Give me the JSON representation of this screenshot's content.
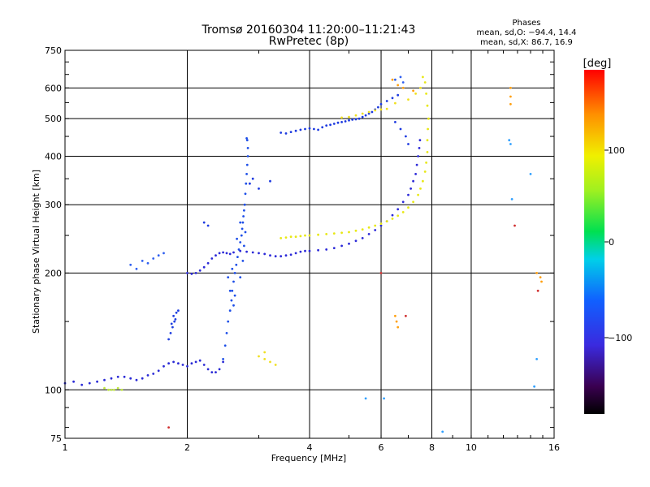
{
  "header": {
    "title_line1": "Tromsø 20160304 11:20:00–11:21:43",
    "title_line2": "RwPretec (8p)"
  },
  "phases_box": {
    "heading": "Phases",
    "line_o": "mean, sd,O:  −94.4, 14.4",
    "line_x": "mean, sd,X:  86.7, 16.9"
  },
  "colorbar": {
    "label": "[deg]",
    "tick_labels": [
      "100",
      "0",
      "−100"
    ],
    "range": [
      -180,
      180
    ]
  },
  "chart_data": {
    "type": "scatter",
    "title": "Tromsø 20160304 11:20:00–11:21:43",
    "subtitle": "RwPretec (8p)",
    "xlabel": "Frequency [MHz]",
    "ylabel": "Stationary phase Virtual Height [km]",
    "x_scale": "log",
    "y_scale": "log",
    "xlim": [
      1,
      16
    ],
    "ylim": [
      75,
      750
    ],
    "x_ticks": [
      1,
      2,
      4,
      6,
      8,
      10,
      16
    ],
    "x_tick_labels": [
      "1",
      "2",
      "4",
      "6",
      "8",
      "10",
      "16"
    ],
    "y_ticks": [
      75,
      100,
      200,
      300,
      400,
      500,
      600,
      750
    ],
    "y_tick_labels": [
      "75",
      "100",
      "200",
      "300",
      "400",
      "500",
      "600",
      "750"
    ],
    "x_grid": [
      2,
      4,
      6,
      8,
      10
    ],
    "y_grid": [
      100,
      200,
      300,
      400,
      500,
      600
    ],
    "grid": true,
    "color_variable": "phase [deg]",
    "series": [
      {
        "color": "#2a2ad6",
        "phase": -100,
        "points": [
          [
            1.0,
            104
          ],
          [
            1.05,
            105
          ],
          [
            1.1,
            103
          ],
          [
            1.15,
            104
          ],
          [
            1.2,
            105
          ],
          [
            1.25,
            106
          ],
          [
            1.3,
            107
          ],
          [
            1.35,
            108
          ],
          [
            1.4,
            108
          ],
          [
            1.45,
            107
          ],
          [
            1.5,
            106
          ],
          [
            1.55,
            107
          ],
          [
            1.6,
            109
          ],
          [
            1.65,
            110
          ],
          [
            1.7,
            112
          ],
          [
            1.75,
            115
          ],
          [
            1.8,
            117
          ],
          [
            1.85,
            118
          ],
          [
            1.9,
            117
          ],
          [
            1.95,
            116
          ],
          [
            2.0,
            115
          ],
          [
            2.05,
            117
          ],
          [
            2.1,
            118
          ],
          [
            2.15,
            119
          ],
          [
            2.2,
            116
          ],
          [
            2.25,
            113
          ],
          [
            2.3,
            111
          ],
          [
            2.35,
            111
          ],
          [
            2.4,
            113
          ],
          [
            2.45,
            118
          ]
        ]
      },
      {
        "color": "#1f3fe0",
        "phase": -110,
        "points": [
          [
            1.8,
            135
          ],
          [
            1.82,
            140
          ],
          [
            1.84,
            145
          ],
          [
            1.86,
            150
          ],
          [
            1.85,
            155
          ],
          [
            1.88,
            158
          ],
          [
            1.9,
            160
          ],
          [
            1.83,
            148
          ],
          [
            1.87,
            152
          ]
        ]
      },
      {
        "color": "#1e4fe8",
        "phase": -100,
        "points": [
          [
            2.45,
            120
          ],
          [
            2.48,
            130
          ],
          [
            2.5,
            140
          ],
          [
            2.52,
            150
          ],
          [
            2.55,
            160
          ],
          [
            2.57,
            170
          ],
          [
            2.58,
            180
          ],
          [
            2.6,
            190
          ],
          [
            2.62,
            200
          ],
          [
            2.64,
            210
          ],
          [
            2.66,
            220
          ],
          [
            2.68,
            230
          ],
          [
            2.7,
            240
          ],
          [
            2.72,
            250
          ],
          [
            2.73,
            260
          ],
          [
            2.74,
            270
          ],
          [
            2.75,
            280
          ],
          [
            2.76,
            290
          ],
          [
            2.77,
            300
          ],
          [
            2.78,
            320
          ],
          [
            2.79,
            340
          ],
          [
            2.8,
            360
          ],
          [
            2.81,
            380
          ],
          [
            2.82,
            400
          ],
          [
            2.82,
            420
          ],
          [
            2.81,
            440
          ],
          [
            2.8,
            445
          ],
          [
            2.55,
            180
          ],
          [
            2.6,
            165
          ],
          [
            2.62,
            175
          ],
          [
            2.7,
            195
          ],
          [
            2.74,
            215
          ],
          [
            2.76,
            235
          ],
          [
            2.78,
            255
          ],
          [
            2.7,
            270
          ],
          [
            2.65,
            245
          ],
          [
            2.58,
            205
          ],
          [
            2.52,
            195
          ]
        ]
      },
      {
        "color": "#2c2ad8",
        "phase": -95,
        "points": [
          [
            2.0,
            200
          ],
          [
            2.05,
            199
          ],
          [
            2.1,
            200
          ],
          [
            2.15,
            203
          ],
          [
            2.2,
            207
          ],
          [
            2.25,
            212
          ],
          [
            2.3,
            218
          ],
          [
            2.35,
            222
          ],
          [
            2.4,
            225
          ],
          [
            2.45,
            226
          ],
          [
            2.5,
            225
          ],
          [
            2.55,
            224
          ],
          [
            2.6,
            226
          ],
          [
            2.7,
            228
          ],
          [
            2.8,
            227
          ],
          [
            2.9,
            226
          ],
          [
            3.0,
            225
          ],
          [
            3.1,
            224
          ],
          [
            3.2,
            222
          ],
          [
            3.3,
            221
          ],
          [
            3.4,
            221
          ],
          [
            3.5,
            222
          ],
          [
            3.6,
            223
          ],
          [
            3.7,
            225
          ],
          [
            3.8,
            227
          ],
          [
            3.9,
            228
          ],
          [
            4.0,
            228
          ],
          [
            4.2,
            229
          ],
          [
            4.4,
            230
          ],
          [
            4.6,
            232
          ],
          [
            4.8,
            235
          ],
          [
            5.0,
            238
          ],
          [
            5.2,
            242
          ],
          [
            5.4,
            246
          ],
          [
            5.6,
            252
          ],
          [
            5.8,
            258
          ],
          [
            6.0,
            265
          ],
          [
            6.2,
            272
          ],
          [
            6.4,
            282
          ],
          [
            6.6,
            292
          ],
          [
            6.8,
            305
          ],
          [
            7.0,
            318
          ],
          [
            7.1,
            330
          ],
          [
            7.2,
            345
          ],
          [
            7.3,
            360
          ],
          [
            7.35,
            380
          ],
          [
            7.4,
            400
          ],
          [
            7.45,
            420
          ],
          [
            7.48,
            440
          ]
        ]
      },
      {
        "color": "#1d3ae0",
        "phase": -105,
        "points": [
          [
            2.2,
            270
          ],
          [
            2.25,
            265
          ],
          [
            2.85,
            340
          ],
          [
            2.9,
            350
          ],
          [
            3.0,
            330
          ],
          [
            3.2,
            345
          ],
          [
            3.4,
            460
          ],
          [
            3.5,
            458
          ],
          [
            3.6,
            462
          ],
          [
            3.7,
            465
          ],
          [
            3.8,
            468
          ],
          [
            3.9,
            470
          ],
          [
            4.0,
            472
          ],
          [
            4.1,
            470
          ],
          [
            4.2,
            468
          ],
          [
            4.3,
            475
          ],
          [
            4.4,
            480
          ],
          [
            4.5,
            482
          ],
          [
            4.6,
            485
          ],
          [
            4.7,
            488
          ],
          [
            4.8,
            490
          ],
          [
            4.9,
            492
          ],
          [
            5.0,
            495
          ],
          [
            5.1,
            497
          ],
          [
            5.2,
            498
          ],
          [
            5.3,
            500
          ],
          [
            5.4,
            505
          ],
          [
            5.5,
            510
          ],
          [
            5.6,
            515
          ],
          [
            5.7,
            520
          ],
          [
            5.8,
            528
          ],
          [
            5.9,
            535
          ],
          [
            6.0,
            545
          ],
          [
            6.2,
            555
          ],
          [
            6.4,
            565
          ],
          [
            6.6,
            575
          ],
          [
            6.5,
            490
          ],
          [
            6.7,
            470
          ],
          [
            6.9,
            450
          ],
          [
            7.0,
            430
          ]
        ]
      },
      {
        "color": "#3060f0",
        "phase": -90,
        "points": [
          [
            1.55,
            215
          ],
          [
            1.6,
            212
          ],
          [
            1.65,
            218
          ],
          [
            1.7,
            222
          ],
          [
            1.75,
            225
          ],
          [
            1.5,
            205
          ],
          [
            1.45,
            210
          ],
          [
            6.5,
            630
          ],
          [
            6.7,
            640
          ],
          [
            6.8,
            620
          ]
        ]
      },
      {
        "color": "#e8e816",
        "phase": 100,
        "points": [
          [
            3.4,
            246
          ],
          [
            3.5,
            247
          ],
          [
            3.6,
            248
          ],
          [
            3.7,
            248
          ],
          [
            3.8,
            249
          ],
          [
            3.9,
            250
          ],
          [
            4.0,
            250
          ],
          [
            4.2,
            251
          ],
          [
            4.4,
            252
          ],
          [
            4.6,
            253
          ],
          [
            4.8,
            254
          ],
          [
            5.0,
            255
          ],
          [
            5.2,
            257
          ],
          [
            5.4,
            259
          ],
          [
            5.6,
            262
          ],
          [
            5.8,
            265
          ],
          [
            6.0,
            268
          ],
          [
            6.2,
            272
          ],
          [
            6.4,
            276
          ],
          [
            6.6,
            281
          ],
          [
            6.8,
            287
          ],
          [
            7.0,
            295
          ],
          [
            7.2,
            305
          ],
          [
            7.4,
            318
          ],
          [
            7.5,
            330
          ],
          [
            7.6,
            345
          ],
          [
            7.7,
            365
          ],
          [
            7.75,
            385
          ],
          [
            7.8,
            410
          ],
          [
            7.8,
            440
          ],
          [
            7.82,
            470
          ],
          [
            7.85,
            500
          ],
          [
            7.8,
            540
          ],
          [
            7.75,
            580
          ],
          [
            7.7,
            620
          ],
          [
            7.6,
            640
          ]
        ]
      },
      {
        "color": "#f0e020",
        "phase": 90,
        "points": [
          [
            4.8,
            503
          ],
          [
            5.0,
            505
          ],
          [
            5.2,
            510
          ],
          [
            5.4,
            515
          ],
          [
            5.6,
            520
          ],
          [
            5.8,
            525
          ],
          [
            6.0,
            528
          ],
          [
            6.2,
            530
          ],
          [
            6.5,
            548
          ],
          [
            7.0,
            560
          ],
          [
            7.3,
            580
          ],
          [
            7.5,
            600
          ],
          [
            3.0,
            122
          ],
          [
            3.1,
            120
          ],
          [
            3.2,
            118
          ],
          [
            3.3,
            116
          ],
          [
            3.1,
            125
          ]
        ]
      },
      {
        "color": "#c0e840",
        "phase": 60,
        "points": [
          [
            1.25,
            101
          ],
          [
            1.28,
            100
          ],
          [
            1.3,
            100
          ],
          [
            1.32,
            100
          ],
          [
            1.35,
            101
          ],
          [
            1.38,
            100
          ]
        ]
      },
      {
        "color": "#ffa010",
        "phase": 140,
        "points": [
          [
            6.5,
            155
          ],
          [
            6.55,
            150
          ],
          [
            6.6,
            145
          ],
          [
            6.4,
            630
          ],
          [
            6.6,
            610
          ],
          [
            6.8,
            600
          ],
          [
            7.2,
            590
          ],
          [
            12.5,
            600
          ],
          [
            12.5,
            570
          ],
          [
            12.5,
            545
          ],
          [
            14.5,
            200
          ],
          [
            14.8,
            195
          ],
          [
            14.9,
            190
          ]
        ]
      },
      {
        "color": "#30a0ff",
        "phase": -40,
        "points": [
          [
            12.5,
            430
          ],
          [
            12.4,
            440
          ],
          [
            14.0,
            360
          ],
          [
            14.5,
            120
          ],
          [
            14.3,
            102
          ],
          [
            12.6,
            310
          ],
          [
            5.5,
            95
          ],
          [
            6.1,
            95
          ],
          [
            8.5,
            78
          ]
        ]
      },
      {
        "color": "#d03030",
        "phase": 170,
        "points": [
          [
            6.9,
            155
          ],
          [
            6.0,
            200
          ],
          [
            14.6,
            180
          ],
          [
            12.8,
            265
          ],
          [
            1.8,
            80
          ]
        ]
      }
    ]
  }
}
